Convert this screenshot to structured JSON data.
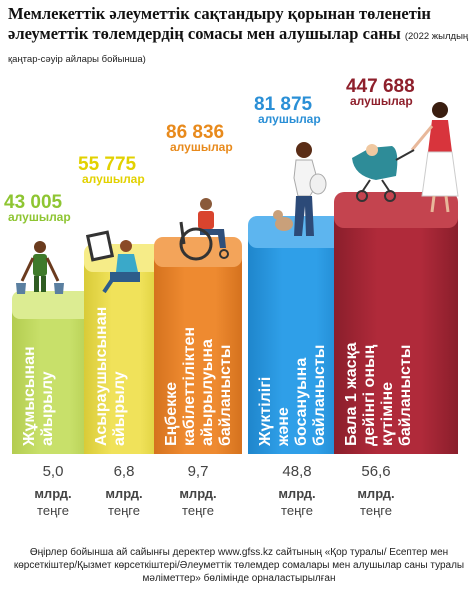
{
  "title": "Мемлекеттік әлеуметтік сақтандыру қорынан төленетін әлеуметтік төлемдердің сомасы мен алушылар саны",
  "subtitle": "(2022 жылдың қаңтар-сәуір айлары бойынша)",
  "footnote": "Өңірлер бойынша ай сайынғы деректер www.gfss.kz сайтының «Қор туралы/ Есептер мен көрсеткіштер/Қызмет көрсеткіштері/Әлеуметтік төлемдер сомалары мен алушылар саны туралы мәліметтер» бөлімінде орналастырылған",
  "recipients_unit": "алушылар",
  "amount_unit": "млрд. теңге",
  "colors": {
    "bar1": "#c8e06a",
    "bar2": "#f0e25a",
    "bar3": "#ee8a30",
    "bar4": "#2f9fe8",
    "bar5": "#b02a3a",
    "label1": "#8ec532",
    "label2": "#e2d100",
    "label3": "#e88a1c",
    "label4": "#2a8fd6",
    "label5": "#8e1f2b"
  },
  "chart_data": {
    "type": "bar",
    "categories": [
      "Жұмысынан айырылу",
      "Асыраушысынан айырылу",
      "Еңбекке кабілеттіліктен айырылуына байланысты",
      "Жүктілігі және босануына байланысты",
      "Бала 1 жасқа дейінгі оның күтіміне байланысты"
    ],
    "series": [
      {
        "name": "алушылар",
        "values": [
          43005,
          55775,
          86836,
          81875,
          447688
        ]
      },
      {
        "name": "млрд. теңге",
        "values": [
          5.0,
          6.8,
          9.7,
          48.8,
          56.6
        ]
      }
    ],
    "value_labels": {
      "recipients": [
        "43 005",
        "55 775",
        "86 836",
        "81 875",
        "447 688"
      ],
      "amounts": [
        "5,0",
        "6,8",
        "9,7",
        "48,8",
        "56,6"
      ]
    },
    "icons": [
      "worker-icon",
      "seated-woman-icon",
      "wheelchair-icon",
      "pregnant-woman-icon",
      "mother-stroller-icon"
    ]
  }
}
